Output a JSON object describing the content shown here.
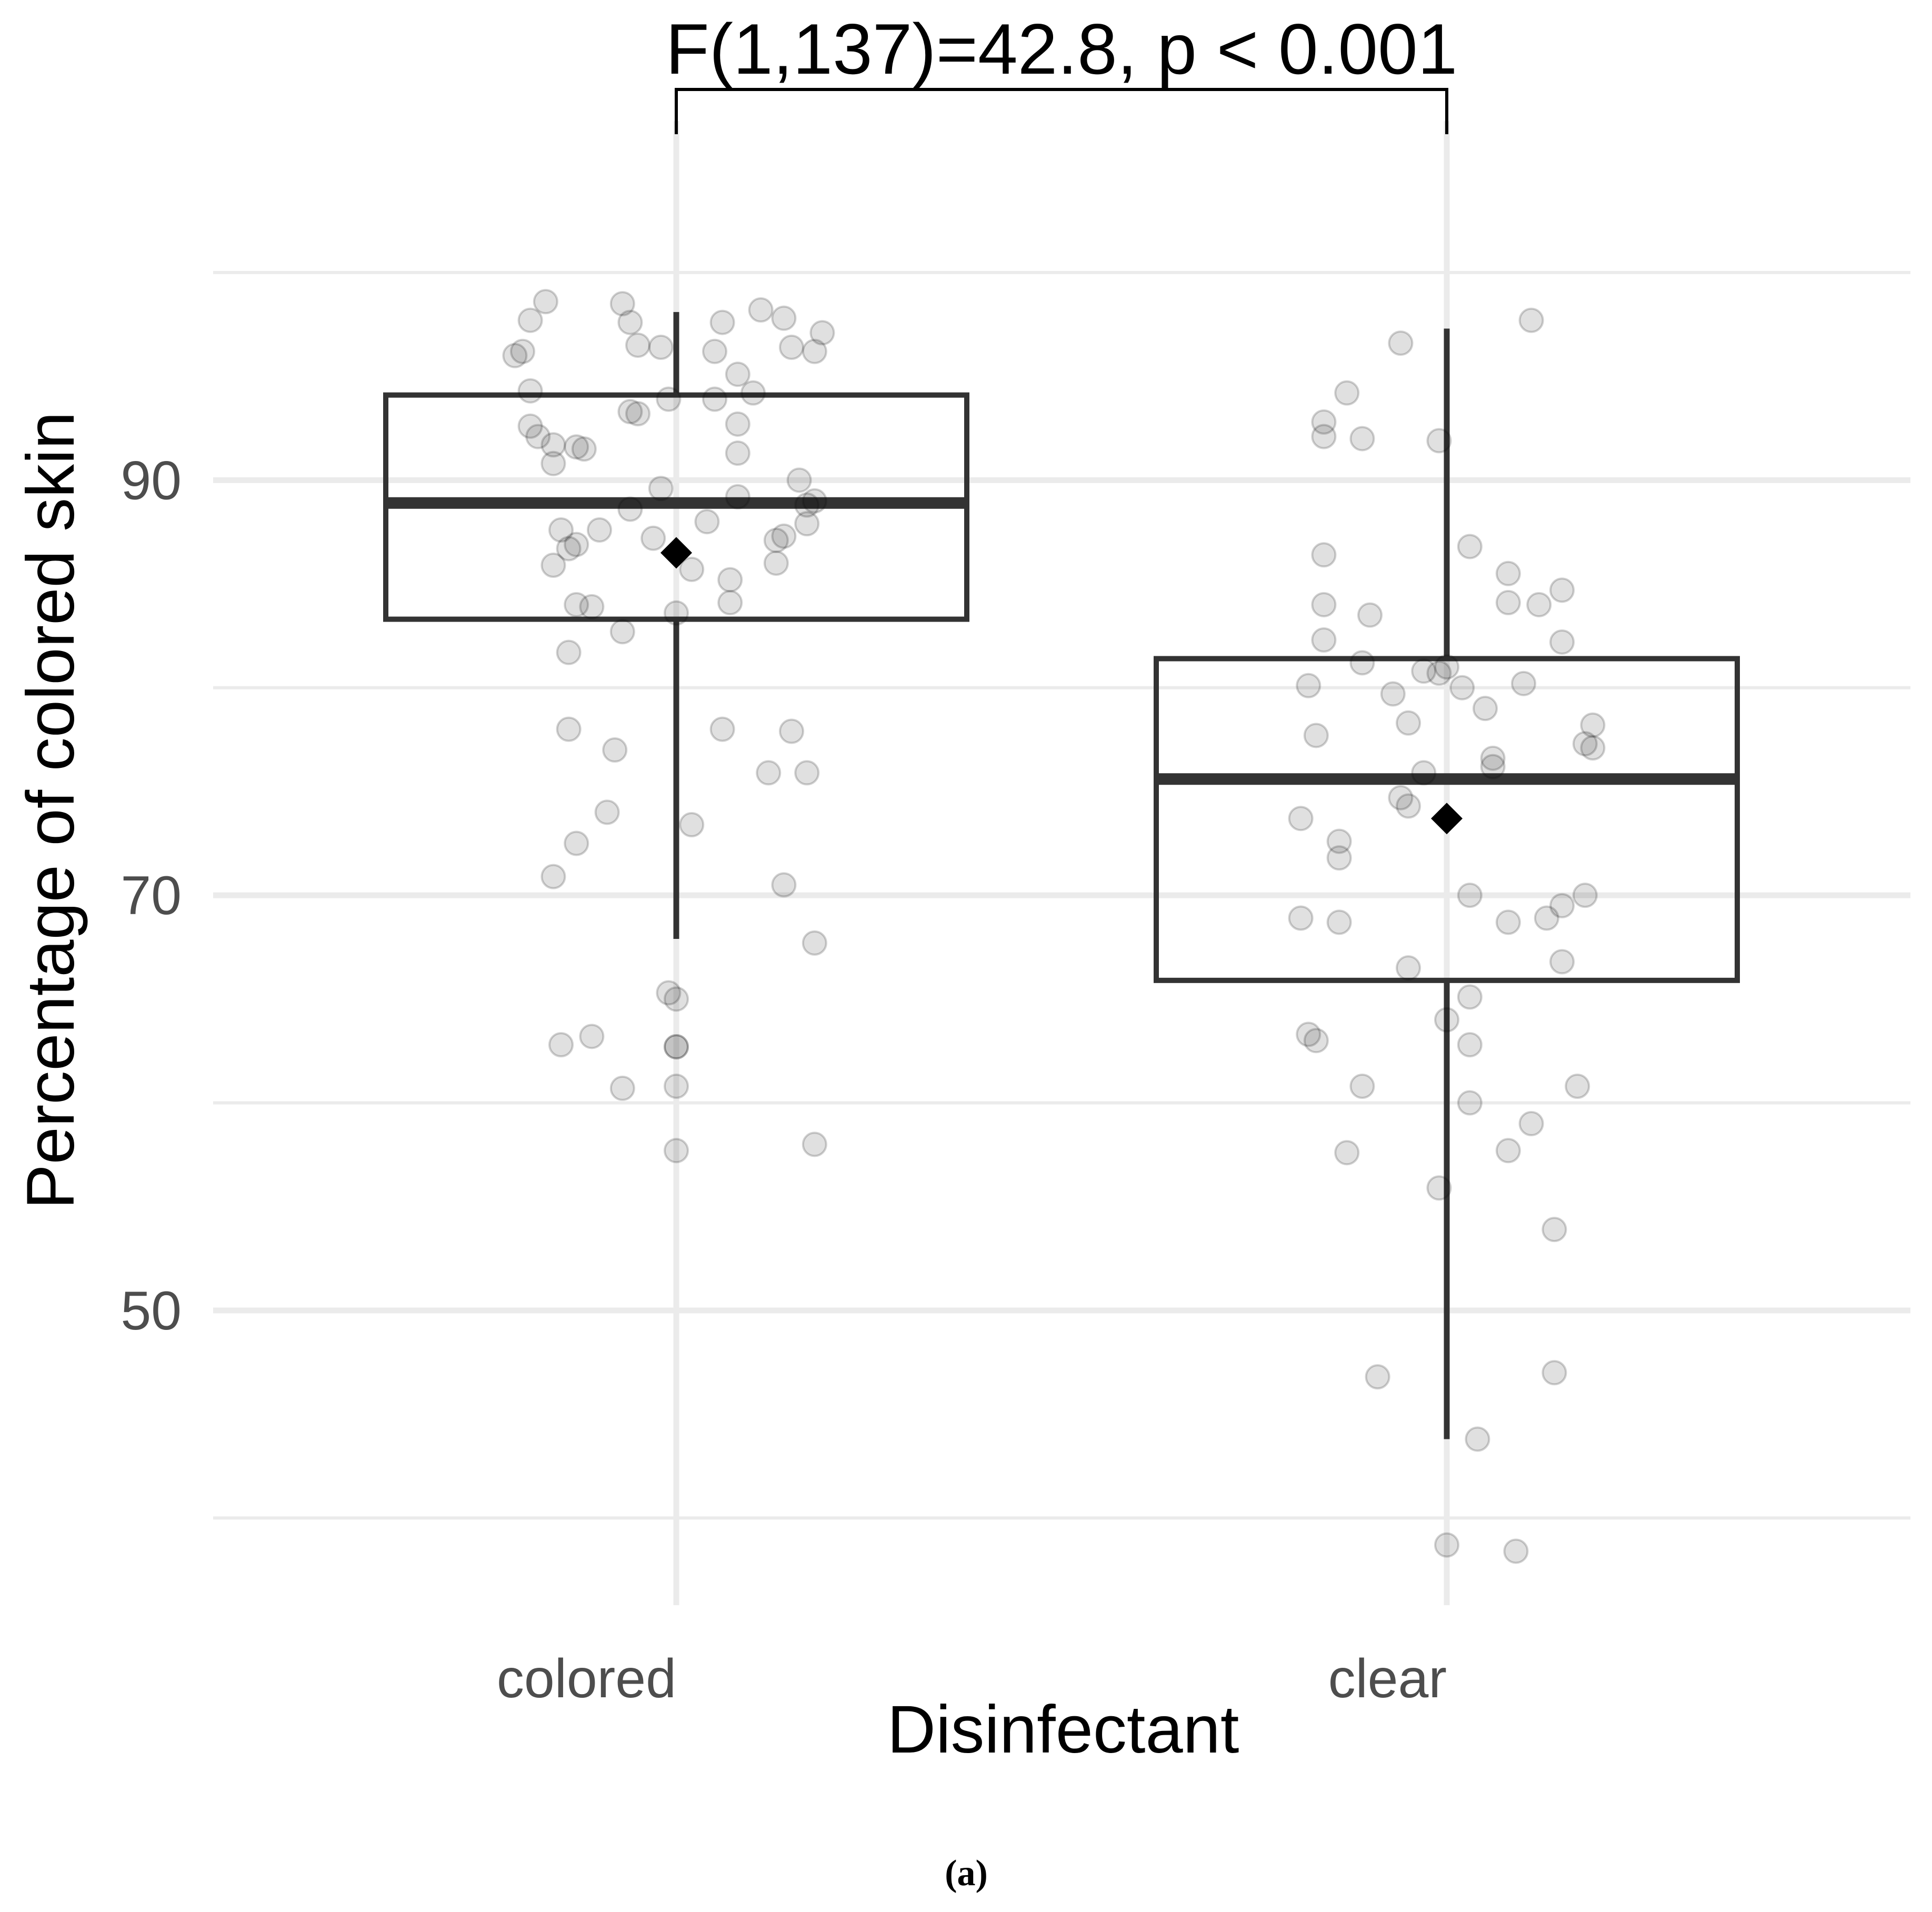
{
  "chart_data": {
    "type": "boxplot",
    "title": "",
    "xlabel": "Disinfectant",
    "ylabel": "Percentage of colored skin",
    "ylim": [
      35.8,
      107.3
    ],
    "yticks": [
      50,
      70,
      90
    ],
    "grid": true,
    "caption": "(a)",
    "annotation": {
      "text": "F(1,137)=42.8, p < 0.001",
      "from": "colored",
      "to": "clear"
    },
    "categories": [
      "colored",
      "clear"
    ],
    "groups": [
      {
        "name": "colored",
        "whisker_low": 67.9,
        "q1": 83.3,
        "median": 88.9,
        "q3": 94.1,
        "whisker_high": 98.1,
        "mean": 86.5,
        "points": [
          [
            -0.17,
            98.6
          ],
          [
            -0.19,
            97.7
          ],
          [
            -0.07,
            98.5
          ],
          [
            -0.06,
            97.6
          ],
          [
            0.11,
            98.2
          ],
          [
            0.06,
            97.6
          ],
          [
            0.14,
            97.8
          ],
          [
            0.19,
            97.1
          ],
          [
            -0.2,
            96.2
          ],
          [
            -0.21,
            96.0
          ],
          [
            -0.05,
            96.5
          ],
          [
            -0.02,
            96.4
          ],
          [
            0.05,
            96.2
          ],
          [
            0.15,
            96.4
          ],
          [
            0.18,
            96.2
          ],
          [
            0.08,
            95.1
          ],
          [
            -0.19,
            94.3
          ],
          [
            0.1,
            94.2
          ],
          [
            -0.01,
            93.9
          ],
          [
            0.05,
            93.9
          ],
          [
            -0.06,
            93.3
          ],
          [
            -0.05,
            93.2
          ],
          [
            -0.19,
            92.6
          ],
          [
            0.08,
            92.7
          ],
          [
            -0.18,
            92.1
          ],
          [
            -0.16,
            91.7
          ],
          [
            -0.13,
            91.6
          ],
          [
            -0.12,
            91.5
          ],
          [
            -0.16,
            90.8
          ],
          [
            0.08,
            91.3
          ],
          [
            0.16,
            90.0
          ],
          [
            -0.02,
            89.6
          ],
          [
            0.08,
            89.2
          ],
          [
            0.18,
            89.0
          ],
          [
            0.17,
            88.8
          ],
          [
            -0.06,
            88.6
          ],
          [
            0.04,
            88.0
          ],
          [
            0.17,
            87.9
          ],
          [
            -0.15,
            87.6
          ],
          [
            -0.1,
            87.6
          ],
          [
            -0.03,
            87.2
          ],
          [
            0.14,
            87.3
          ],
          [
            0.13,
            87.1
          ],
          [
            -0.13,
            86.9
          ],
          [
            -0.14,
            86.7
          ],
          [
            0.02,
            85.7
          ],
          [
            -0.16,
            85.9
          ],
          [
            0.13,
            86.0
          ],
          [
            0.07,
            85.2
          ],
          [
            -0.13,
            84.0
          ],
          [
            -0.11,
            83.9
          ],
          [
            0.0,
            83.6
          ],
          [
            0.07,
            84.1
          ],
          [
            -0.07,
            82.7
          ],
          [
            -0.14,
            81.7
          ],
          [
            -0.14,
            78.0
          ],
          [
            0.06,
            78.0
          ],
          [
            0.15,
            77.9
          ],
          [
            -0.08,
            77.0
          ],
          [
            0.12,
            75.9
          ],
          [
            0.17,
            75.9
          ],
          [
            -0.09,
            74.0
          ],
          [
            0.02,
            73.4
          ],
          [
            -0.13,
            72.5
          ],
          [
            -0.16,
            70.9
          ],
          [
            0.14,
            70.5
          ],
          [
            0.18,
            67.7
          ],
          [
            -0.01,
            65.3
          ],
          [
            0.0,
            65.0
          ],
          [
            -0.11,
            63.2
          ],
          [
            -0.15,
            62.8
          ],
          [
            0.0,
            62.7
          ],
          [
            0.0,
            62.7
          ],
          [
            0.0,
            60.8
          ],
          [
            -0.07,
            60.7
          ],
          [
            0.0,
            57.7
          ],
          [
            0.18,
            58.0
          ]
        ]
      },
      {
        "name": "clear",
        "whisker_low": 43.8,
        "q1": 65.9,
        "median": 75.6,
        "q3": 81.4,
        "whisker_high": 97.3,
        "mean": 73.7,
        "points": [
          [
            0.11,
            97.7
          ],
          [
            -0.06,
            96.6
          ],
          [
            -0.13,
            94.2
          ],
          [
            -0.16,
            92.8
          ],
          [
            -0.16,
            92.1
          ],
          [
            -0.11,
            92.0
          ],
          [
            -0.01,
            91.9
          ],
          [
            0.03,
            86.8
          ],
          [
            -0.16,
            86.4
          ],
          [
            0.08,
            85.5
          ],
          [
            0.15,
            84.7
          ],
          [
            -0.16,
            84.0
          ],
          [
            0.08,
            84.1
          ],
          [
            0.12,
            84.0
          ],
          [
            -0.1,
            83.5
          ],
          [
            -0.16,
            82.3
          ],
          [
            0.15,
            82.2
          ],
          [
            -0.11,
            81.2
          ],
          [
            -0.03,
            80.8
          ],
          [
            0.0,
            81.0
          ],
          [
            -0.01,
            80.7
          ],
          [
            -0.18,
            80.1
          ],
          [
            0.02,
            80.0
          ],
          [
            0.1,
            80.2
          ],
          [
            -0.07,
            79.7
          ],
          [
            0.05,
            79.0
          ],
          [
            -0.05,
            78.3
          ],
          [
            0.19,
            78.2
          ],
          [
            -0.17,
            77.7
          ],
          [
            0.19,
            77.1
          ],
          [
            0.18,
            77.3
          ],
          [
            0.06,
            76.6
          ],
          [
            0.06,
            76.2
          ],
          [
            -0.03,
            75.9
          ],
          [
            -0.06,
            74.7
          ],
          [
            -0.05,
            74.3
          ],
          [
            -0.19,
            73.7
          ],
          [
            -0.14,
            72.6
          ],
          [
            -0.14,
            71.8
          ],
          [
            0.03,
            70.0
          ],
          [
            0.18,
            70.0
          ],
          [
            0.15,
            69.5
          ],
          [
            0.13,
            68.9
          ],
          [
            -0.19,
            68.9
          ],
          [
            -0.14,
            68.7
          ],
          [
            0.08,
            68.7
          ],
          [
            0.15,
            66.8
          ],
          [
            -0.05,
            66.5
          ],
          [
            0.03,
            65.1
          ],
          [
            0.0,
            64.0
          ],
          [
            -0.18,
            63.3
          ],
          [
            -0.17,
            63.0
          ],
          [
            0.03,
            62.8
          ],
          [
            -0.11,
            60.8
          ],
          [
            0.03,
            60.0
          ],
          [
            0.11,
            59.0
          ],
          [
            0.17,
            60.8
          ],
          [
            -0.13,
            57.6
          ],
          [
            0.08,
            57.7
          ],
          [
            -0.01,
            55.9
          ],
          [
            0.14,
            53.9
          ],
          [
            -0.09,
            46.8
          ],
          [
            0.14,
            47.0
          ],
          [
            0.04,
            43.8
          ],
          [
            0.0,
            38.7
          ],
          [
            0.09,
            38.4
          ]
        ]
      }
    ]
  }
}
